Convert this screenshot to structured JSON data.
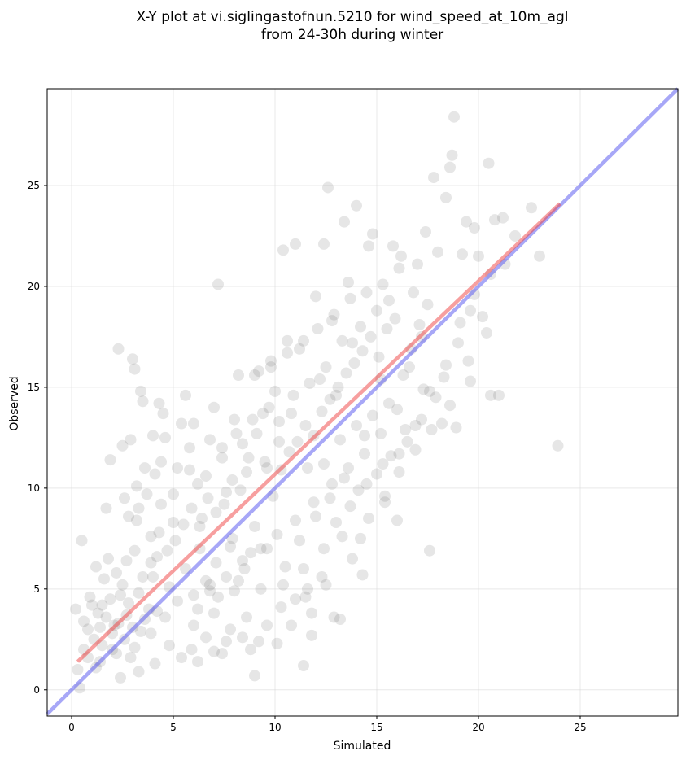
{
  "chart_data": {
    "type": "scatter",
    "title_lines": [
      "X-Y plot at vi.siglingastofnun.5210 for wind_speed_at_10m_agl",
      "from 24-30h during winter"
    ],
    "xlabel": "Simulated",
    "ylabel": "Observed",
    "xlim": [
      -1.2,
      29.8
    ],
    "ylim": [
      -1.3,
      29.8
    ],
    "xticks": [
      0,
      5,
      10,
      15,
      20,
      25
    ],
    "yticks": [
      0,
      5,
      10,
      15,
      20,
      25
    ],
    "grid": true,
    "point_color": "#404040",
    "point_opacity": 0.13,
    "fit_line": {
      "color": "#f04040",
      "x": [
        0.3,
        24.0
      ],
      "y": [
        1.4,
        24.1
      ]
    },
    "identity_line": {
      "color": "#5050f0",
      "x": [
        -1.2,
        29.8
      ],
      "y": [
        -1.2,
        29.8
      ]
    },
    "points": [
      [
        0.5,
        7.4
      ],
      [
        0.4,
        0.1
      ],
      [
        0.3,
        1.0
      ],
      [
        0.6,
        2.0
      ],
      [
        0.8,
        3.0
      ],
      [
        0.2,
        4.0
      ],
      [
        0.9,
        4.6
      ],
      [
        1.1,
        2.5
      ],
      [
        1.3,
        3.8
      ],
      [
        1.2,
        6.1
      ],
      [
        1.6,
        5.5
      ],
      [
        1.8,
        6.5
      ],
      [
        1.7,
        9.0
      ],
      [
        1.9,
        11.4
      ],
      [
        1.4,
        1.4
      ],
      [
        1.5,
        4.2
      ],
      [
        2.0,
        2.0
      ],
      [
        2.1,
        3.2
      ],
      [
        2.3,
        16.9
      ],
      [
        2.5,
        12.1
      ],
      [
        2.6,
        9.5
      ],
      [
        2.8,
        8.6
      ],
      [
        2.9,
        12.4
      ],
      [
        3.0,
        16.4
      ],
      [
        3.1,
        15.9
      ],
      [
        3.2,
        10.1
      ],
      [
        3.4,
        14.8
      ],
      [
        3.5,
        14.3
      ],
      [
        3.6,
        11.0
      ],
      [
        3.3,
        9.0
      ],
      [
        2.2,
        5.8
      ],
      [
        2.4,
        4.7
      ],
      [
        2.7,
        3.7
      ],
      [
        3.8,
        4.0
      ],
      [
        3.9,
        7.6
      ],
      [
        4.0,
        12.6
      ],
      [
        4.1,
        10.7
      ],
      [
        4.3,
        14.2
      ],
      [
        4.5,
        13.7
      ],
      [
        4.6,
        12.5
      ],
      [
        4.4,
        9.2
      ],
      [
        4.2,
        6.6
      ],
      [
        4.8,
        5.1
      ],
      [
        5.0,
        8.3
      ],
      [
        5.2,
        11.0
      ],
      [
        5.4,
        13.2
      ],
      [
        5.6,
        14.6
      ],
      [
        5.8,
        12.0
      ],
      [
        6.0,
        13.2
      ],
      [
        6.2,
        10.2
      ],
      [
        6.4,
        8.5
      ],
      [
        6.6,
        5.4
      ],
      [
        6.8,
        12.4
      ],
      [
        7.0,
        14.0
      ],
      [
        7.2,
        20.1
      ],
      [
        7.4,
        11.5
      ],
      [
        7.6,
        9.8
      ],
      [
        7.8,
        7.1
      ],
      [
        8.0,
        13.4
      ],
      [
        8.2,
        15.6
      ],
      [
        8.4,
        12.2
      ],
      [
        8.6,
        10.8
      ],
      [
        8.8,
        6.8
      ],
      [
        9.0,
        0.7
      ],
      [
        9.2,
        15.8
      ],
      [
        9.4,
        13.7
      ],
      [
        9.6,
        11.0
      ],
      [
        9.8,
        16.3
      ],
      [
        10.0,
        14.8
      ],
      [
        10.2,
        12.3
      ],
      [
        10.4,
        21.8
      ],
      [
        10.6,
        17.3
      ],
      [
        10.8,
        13.7
      ],
      [
        11.0,
        22.1
      ],
      [
        11.2,
        16.9
      ],
      [
        11.4,
        1.2
      ],
      [
        11.6,
        5.0
      ],
      [
        11.8,
        2.7
      ],
      [
        12.0,
        19.5
      ],
      [
        12.2,
        15.4
      ],
      [
        12.4,
        22.1
      ],
      [
        12.6,
        24.9
      ],
      [
        12.8,
        18.3
      ],
      [
        13.0,
        14.6
      ],
      [
        13.2,
        3.5
      ],
      [
        13.4,
        23.2
      ],
      [
        13.6,
        20.2
      ],
      [
        13.8,
        17.2
      ],
      [
        14.0,
        24.0
      ],
      [
        14.2,
        7.5
      ],
      [
        14.4,
        12.6
      ],
      [
        14.6,
        22.0
      ],
      [
        14.8,
        22.6
      ],
      [
        15.0,
        18.8
      ],
      [
        15.2,
        15.4
      ],
      [
        15.4,
        9.3
      ],
      [
        15.6,
        19.3
      ],
      [
        15.8,
        22.0
      ],
      [
        16.0,
        8.4
      ],
      [
        16.2,
        21.5
      ],
      [
        16.4,
        12.9
      ],
      [
        16.6,
        16.0
      ],
      [
        16.8,
        19.7
      ],
      [
        17.0,
        21.1
      ],
      [
        17.2,
        17.5
      ],
      [
        17.4,
        22.7
      ],
      [
        17.6,
        6.9
      ],
      [
        17.8,
        25.4
      ],
      [
        18.0,
        21.7
      ],
      [
        18.2,
        13.2
      ],
      [
        18.4,
        24.4
      ],
      [
        18.6,
        25.9
      ],
      [
        18.8,
        28.4
      ],
      [
        18.9,
        13.0
      ],
      [
        19.2,
        21.6
      ],
      [
        19.4,
        23.2
      ],
      [
        19.6,
        15.3
      ],
      [
        19.8,
        22.9
      ],
      [
        20.0,
        21.5
      ],
      [
        20.2,
        18.5
      ],
      [
        20.5,
        26.1
      ],
      [
        20.6,
        14.6
      ],
      [
        20.8,
        23.3
      ],
      [
        21.0,
        14.6
      ],
      [
        21.2,
        23.4
      ],
      [
        21.8,
        22.5
      ],
      [
        22.6,
        23.9
      ],
      [
        23.0,
        21.5
      ],
      [
        23.9,
        12.1
      ],
      [
        18.7,
        26.5
      ],
      [
        2.0,
        2.8
      ],
      [
        2.3,
        3.3
      ],
      [
        2.6,
        2.5
      ],
      [
        3.0,
        3.1
      ],
      [
        3.4,
        2.9
      ],
      [
        1.7,
        3.6
      ],
      [
        2.8,
        4.3
      ],
      [
        3.6,
        3.5
      ],
      [
        4.2,
        3.9
      ],
      [
        1.5,
        2.2
      ],
      [
        2.2,
        1.8
      ],
      [
        3.1,
        2.1
      ],
      [
        3.9,
        2.8
      ],
      [
        4.6,
        3.6
      ],
      [
        1.9,
        4.5
      ],
      [
        2.5,
        5.2
      ],
      [
        3.3,
        4.8
      ],
      [
        4.0,
        5.6
      ],
      [
        1.4,
        3.1
      ],
      [
        2.9,
        1.6
      ],
      [
        5.2,
        4.4
      ],
      [
        6.0,
        3.2
      ],
      [
        6.6,
        2.6
      ],
      [
        7.0,
        3.8
      ],
      [
        7.6,
        2.4
      ],
      [
        8.0,
        4.9
      ],
      [
        8.6,
        3.6
      ],
      [
        9.2,
        2.4
      ],
      [
        5.6,
        6.0
      ],
      [
        6.3,
        7.0
      ],
      [
        7.1,
        6.3
      ],
      [
        7.9,
        7.5
      ],
      [
        8.5,
        6.0
      ],
      [
        9.0,
        8.1
      ],
      [
        9.6,
        7.0
      ],
      [
        6.8,
        5.2
      ],
      [
        5.9,
        2.0
      ],
      [
        7.4,
        1.8
      ],
      [
        8.8,
        2.0
      ],
      [
        10.1,
        2.3
      ],
      [
        10.8,
        3.2
      ],
      [
        11.5,
        4.6
      ],
      [
        12.3,
        5.6
      ],
      [
        12.9,
        3.6
      ],
      [
        13.8,
        6.5
      ],
      [
        14.3,
        5.7
      ],
      [
        10.5,
        6.1
      ],
      [
        11.2,
        7.4
      ],
      [
        12.0,
        8.6
      ],
      [
        12.7,
        9.5
      ],
      [
        13.4,
        10.5
      ],
      [
        14.1,
        9.9
      ],
      [
        15.0,
        10.7
      ],
      [
        15.7,
        11.6
      ],
      [
        16.5,
        12.3
      ],
      [
        17.2,
        13.4
      ],
      [
        17.9,
        14.5
      ],
      [
        18.4,
        16.1
      ],
      [
        19.0,
        17.2
      ],
      [
        19.6,
        18.8
      ],
      [
        9.9,
        9.6
      ],
      [
        10.3,
        10.9
      ],
      [
        10.7,
        11.8
      ],
      [
        11.1,
        12.3
      ],
      [
        11.5,
        13.1
      ],
      [
        11.9,
        12.6
      ],
      [
        12.3,
        13.8
      ],
      [
        12.7,
        14.4
      ],
      [
        13.1,
        15.0
      ],
      [
        13.5,
        15.7
      ],
      [
        13.9,
        16.2
      ],
      [
        14.3,
        16.8
      ],
      [
        14.7,
        17.5
      ],
      [
        15.1,
        16.5
      ],
      [
        15.5,
        17.9
      ],
      [
        15.9,
        18.4
      ],
      [
        16.3,
        15.6
      ],
      [
        16.7,
        16.9
      ],
      [
        17.1,
        18.1
      ],
      [
        17.5,
        19.1
      ],
      [
        9.5,
        11.3
      ],
      [
        9.1,
        12.7
      ],
      [
        8.7,
        11.5
      ],
      [
        8.3,
        9.9
      ],
      [
        7.9,
        10.4
      ],
      [
        7.5,
        9.2
      ],
      [
        7.1,
        8.8
      ],
      [
        6.7,
        9.5
      ],
      [
        6.3,
        8.1
      ],
      [
        5.9,
        9.0
      ],
      [
        5.5,
        8.2
      ],
      [
        5.1,
        7.4
      ],
      [
        4.7,
        6.9
      ],
      [
        4.3,
        7.8
      ],
      [
        3.9,
        6.3
      ],
      [
        3.5,
        5.6
      ],
      [
        3.1,
        6.9
      ],
      [
        2.7,
        6.4
      ],
      [
        11.6,
        11.0
      ],
      [
        12.4,
        11.2
      ],
      [
        13.2,
        12.4
      ],
      [
        14.0,
        13.1
      ],
      [
        14.8,
        13.6
      ],
      [
        15.6,
        14.2
      ],
      [
        10.2,
        13.3
      ],
      [
        10.9,
        14.6
      ],
      [
        11.7,
        15.2
      ],
      [
        12.5,
        16.0
      ],
      [
        13.3,
        17.3
      ],
      [
        14.2,
        18.0
      ],
      [
        9.7,
        14.0
      ],
      [
        8.9,
        13.4
      ],
      [
        8.1,
        12.7
      ],
      [
        7.4,
        12.0
      ],
      [
        6.6,
        10.6
      ],
      [
        5.8,
        10.9
      ],
      [
        5.0,
        9.7
      ],
      [
        4.4,
        11.3
      ],
      [
        3.7,
        9.7
      ],
      [
        3.2,
        8.4
      ],
      [
        6.2,
        4.0
      ],
      [
        7.2,
        4.6
      ],
      [
        8.2,
        5.4
      ],
      [
        9.3,
        5.0
      ],
      [
        10.4,
        5.2
      ],
      [
        11.4,
        6.0
      ],
      [
        12.4,
        7.0
      ],
      [
        13.3,
        7.6
      ],
      [
        14.6,
        8.5
      ],
      [
        15.4,
        9.6
      ],
      [
        16.1,
        10.8
      ],
      [
        16.9,
        11.9
      ],
      [
        17.7,
        12.9
      ],
      [
        18.6,
        14.1
      ],
      [
        19.5,
        16.3
      ],
      [
        20.4,
        17.7
      ],
      [
        17.3,
        14.9
      ],
      [
        16.0,
        13.9
      ],
      [
        15.2,
        12.7
      ],
      [
        14.4,
        11.7
      ],
      [
        13.6,
        11.0
      ],
      [
        12.8,
        10.2
      ],
      [
        11.9,
        9.3
      ],
      [
        11.0,
        8.4
      ],
      [
        10.1,
        7.7
      ],
      [
        9.3,
        7.0
      ],
      [
        8.4,
        6.4
      ],
      [
        7.6,
        5.6
      ],
      [
        6.8,
        4.9
      ],
      [
        6.0,
        4.7
      ],
      [
        1.2,
        1.1
      ],
      [
        0.8,
        1.6
      ],
      [
        0.6,
        3.4
      ],
      [
        1.0,
        4.2
      ],
      [
        2.4,
        0.6
      ],
      [
        3.3,
        0.9
      ],
      [
        4.1,
        1.3
      ],
      [
        4.8,
        2.2
      ],
      [
        5.4,
        1.6
      ],
      [
        6.2,
        1.4
      ],
      [
        7.0,
        1.9
      ],
      [
        7.8,
        3.0
      ],
      [
        8.4,
        2.6
      ],
      [
        9.6,
        3.2
      ],
      [
        10.3,
        4.1
      ],
      [
        11.0,
        4.5
      ],
      [
        11.8,
        3.8
      ],
      [
        12.5,
        5.2
      ],
      [
        13.0,
        8.3
      ],
      [
        13.7,
        9.1
      ],
      [
        14.5,
        10.2
      ],
      [
        15.3,
        11.2
      ],
      [
        16.1,
        11.7
      ],
      [
        16.9,
        13.1
      ],
      [
        17.6,
        14.8
      ],
      [
        18.3,
        15.5
      ],
      [
        19.1,
        18.2
      ],
      [
        19.8,
        19.6
      ],
      [
        20.6,
        20.6
      ],
      [
        21.3,
        21.1
      ],
      [
        9.0,
        15.6
      ],
      [
        9.8,
        16.0
      ],
      [
        10.6,
        16.7
      ],
      [
        11.4,
        17.3
      ],
      [
        12.1,
        17.9
      ],
      [
        12.9,
        18.6
      ],
      [
        13.7,
        19.4
      ],
      [
        14.5,
        19.7
      ],
      [
        15.3,
        20.1
      ],
      [
        16.1,
        20.9
      ]
    ]
  }
}
